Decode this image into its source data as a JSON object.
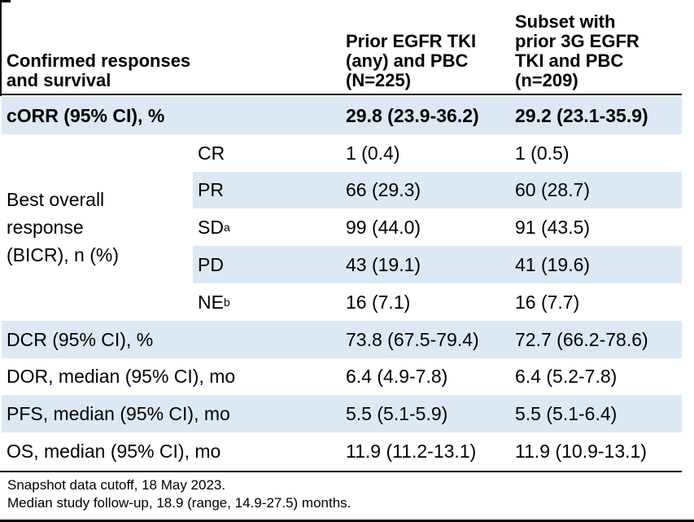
{
  "colors": {
    "highlight": "#dce9f5",
    "text": "#000000",
    "rule": "#000000"
  },
  "table": {
    "header": {
      "row_header": "Confirmed responses\nand survival",
      "col1": "Prior EGFR TKI\n(any) and PBC\n(N=225)",
      "col2": "Subset with\nprior 3G EGFR\nTKI and PBC\n(n=209)"
    },
    "corr_row": {
      "label": "cORR (95% CI), %",
      "v1": "29.8 (23.9-36.2)",
      "v2": "29.2 (23.1-35.9)"
    },
    "bor": {
      "label": "Best overall\nresponse\n(BICR), n (%)",
      "rows": [
        {
          "sub": "CR",
          "sup": "",
          "v1": "1 (0.4)",
          "v2": "1 (0.5)"
        },
        {
          "sub": "PR",
          "sup": "",
          "v1": "66 (29.3)",
          "v2": "60 (28.7)"
        },
        {
          "sub": "SD",
          "sup": "a",
          "v1": "99 (44.0)",
          "v2": "91 (43.5)"
        },
        {
          "sub": "PD",
          "sup": "",
          "v1": "43 (19.1)",
          "v2": "41 (19.6)"
        },
        {
          "sub": "NE",
          "sup": "b",
          "v1": "16 (7.1)",
          "v2": "16 (7.7)"
        }
      ]
    },
    "summary_rows": [
      {
        "label": "DCR (95% CI), %",
        "v1": "73.8 (67.5-79.4)",
        "v2": "72.7 (66.2-78.6)"
      },
      {
        "label": "DOR, median (95% CI), mo",
        "v1": "6.4 (4.9-7.8)",
        "v2": "6.4 (5.2-7.8)"
      },
      {
        "label": "PFS, median (95% CI), mo",
        "v1": "5.5 (5.1-5.9)",
        "v2": "5.5 (5.1-6.4)"
      },
      {
        "label": "OS, median (95% CI), mo",
        "v1": "11.9 (11.2-13.1)",
        "v2": "11.9 (10.9-13.1)"
      }
    ],
    "footnotes": [
      "Snapshot data cutoff, 18 May 2023.",
      "Median study follow-up, 18.9 (range, 14.9-27.5) months."
    ]
  },
  "chart_data": {
    "type": "table",
    "title": "Confirmed responses and survival",
    "columns": [
      "Confirmed responses and survival",
      "Prior EGFR TKI (any) and PBC (N=225)",
      "Subset with prior 3G EGFR TKI and PBC (n=209)"
    ],
    "rows": [
      [
        "cORR (95% CI), %",
        "29.8 (23.9-36.2)",
        "29.2 (23.1-35.9)"
      ],
      [
        "Best overall response (BICR), n (%) — CR",
        "1 (0.4)",
        "1 (0.5)"
      ],
      [
        "Best overall response (BICR), n (%) — PR",
        "66 (29.3)",
        "60 (28.7)"
      ],
      [
        "Best overall response (BICR), n (%) — SDa",
        "99 (44.0)",
        "91 (43.5)"
      ],
      [
        "Best overall response (BICR), n (%) — PD",
        "43 (19.1)",
        "41 (19.6)"
      ],
      [
        "Best overall response (BICR), n (%) — NEb",
        "16 (7.1)",
        "16 (7.7)"
      ],
      [
        "DCR (95% CI), %",
        "73.8 (67.5-79.4)",
        "72.7 (66.2-78.6)"
      ],
      [
        "DOR, median (95% CI), mo",
        "6.4 (4.9-7.8)",
        "6.4 (5.2-7.8)"
      ],
      [
        "PFS, median (95% CI), mo",
        "5.5 (5.1-5.9)",
        "5.5 (5.1-6.4)"
      ],
      [
        "OS, median (95% CI), mo",
        "11.9 (11.2-13.1)",
        "11.9 (10.9-13.1)"
      ]
    ]
  }
}
